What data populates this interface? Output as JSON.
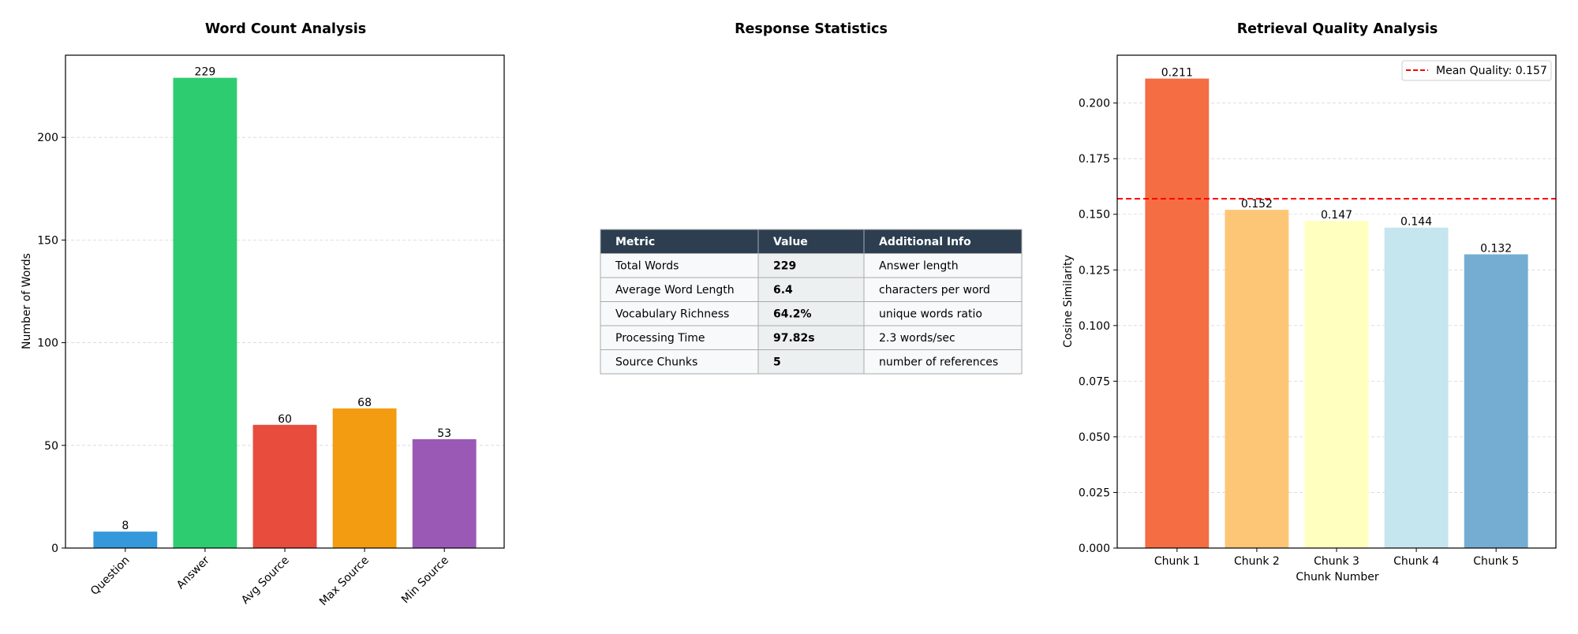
{
  "chart_data": [
    {
      "type": "bar",
      "title": "Word Count Analysis",
      "xlabel": "",
      "ylabel": "Number of Words",
      "categories": [
        "Question",
        "Answer",
        "Avg Source",
        "Max Source",
        "Min Source"
      ],
      "values": [
        8,
        229,
        60,
        68,
        53
      ],
      "colors": [
        "#3498db",
        "#2ecc71",
        "#e74c3c",
        "#f39c12",
        "#9b59b6"
      ],
      "ylim": [
        0,
        240
      ],
      "yticks": [
        "0",
        "50",
        "100",
        "150",
        "200"
      ],
      "grid": true
    },
    {
      "type": "table",
      "title": "Response Statistics",
      "columns": [
        "Metric",
        "Value",
        "Additional Info"
      ],
      "rows": [
        [
          "Total Words",
          "229",
          "Answer length"
        ],
        [
          "Average Word Length",
          "6.4",
          "characters per word"
        ],
        [
          "Vocabulary Richness",
          "64.2%",
          "unique words ratio"
        ],
        [
          "Processing Time",
          "97.82s",
          "2.3 words/sec"
        ],
        [
          "Source Chunks",
          "5",
          "number of references"
        ]
      ],
      "header_color": "#2c3e50"
    },
    {
      "type": "bar",
      "title": "Retrieval Quality Analysis",
      "xlabel": "Chunk Number",
      "ylabel": "Cosine Similarity",
      "categories": [
        "Chunk 1",
        "Chunk 2",
        "Chunk 3",
        "Chunk 4",
        "Chunk 5"
      ],
      "values": [
        0.211,
        0.152,
        0.147,
        0.144,
        0.132
      ],
      "value_labels": [
        "0.211",
        "0.152",
        "0.147",
        "0.144",
        "0.132"
      ],
      "colors": [
        "#f46d43",
        "#fdc677",
        "#ffffbf",
        "#c5e5ef",
        "#74add1"
      ],
      "ylim": [
        0,
        0.2215
      ],
      "yticks": [
        "0.000",
        "0.025",
        "0.050",
        "0.075",
        "0.100",
        "0.125",
        "0.150",
        "0.175",
        "0.200"
      ],
      "mean_line": {
        "value": 0.157,
        "label": "Mean Quality: 0.157",
        "color": "#ff0000"
      },
      "legend_position": "top-right",
      "grid": true
    }
  ]
}
